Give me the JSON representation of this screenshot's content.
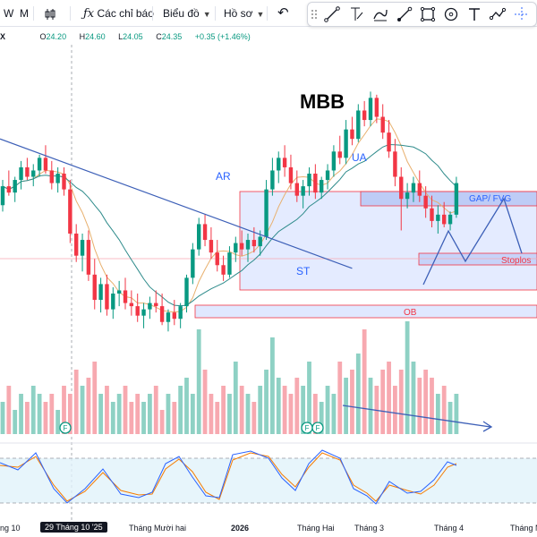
{
  "toolbar": {
    "interval_w": "W",
    "interval_m": "M",
    "indicators": "Các chỉ báo",
    "chart_type": "Biểu đồ",
    "profile": "Hồ sơ"
  },
  "drawing_tools": [
    "line-tool-icon",
    "ray-tool-icon",
    "pen-tool-icon",
    "brush-tool-icon",
    "rectangle-tool-icon",
    "circle-tool-icon",
    "text-tool-icon",
    "path-tool-icon",
    "crosshair-icon"
  ],
  "ohlc": {
    "close_x": "X",
    "o_label": "O",
    "o": "24.20",
    "h_label": "H",
    "h": "24.60",
    "l_label": "L",
    "l": "24.05",
    "c_label": "C",
    "c": "24.35",
    "change": "+0.35 (+1.46%)"
  },
  "annotations": {
    "title": "MBB",
    "ar": "AR",
    "ua": "UA",
    "st": "ST",
    "gap": "GAP/ FVG",
    "stoploss": "Stoplos",
    "ob": "OB"
  },
  "event_markers": [
    "F",
    "F",
    "F"
  ],
  "x_axis": {
    "labels": [
      "ng 10",
      "Tháng Mười hai",
      "2026",
      "Tháng Hai",
      "Tháng 3",
      "Tháng 4",
      "Tháng N"
    ],
    "crosshair_label": "29 Tháng 10 '25"
  },
  "colors": {
    "up": "#089981",
    "down": "#f23645",
    "vol_up": "#8ed1c4",
    "vol_down": "#f7a9b0",
    "zone_fill": "#dbe4ff",
    "zone_border": "#f23645",
    "gap_fill": "#b7c7f5",
    "trend": "#3c5fb7",
    "ma_fast": "#e8b06e",
    "ma_slow": "#2e8b8b",
    "stoch_k": "#2962ff",
    "stoch_d": "#f57c00"
  },
  "chart_data": {
    "type": "candlestick",
    "candles": [
      [
        23.7,
        24.5,
        23.5,
        24.3
      ],
      [
        24.3,
        24.8,
        24.0,
        24.1
      ],
      [
        24.1,
        24.6,
        23.8,
        24.5
      ],
      [
        24.5,
        25.1,
        24.2,
        24.9
      ],
      [
        24.9,
        25.2,
        24.5,
        24.6
      ],
      [
        24.6,
        25.0,
        24.3,
        24.8
      ],
      [
        24.8,
        25.3,
        24.6,
        25.2
      ],
      [
        25.2,
        25.6,
        24.7,
        24.8
      ],
      [
        24.8,
        25.1,
        24.2,
        24.4
      ],
      [
        24.4,
        24.9,
        24.1,
        24.7
      ],
      [
        24.7,
        24.9,
        24.0,
        24.2
      ],
      [
        24.2,
        24.5,
        22.5,
        22.8
      ],
      [
        22.8,
        23.1,
        21.9,
        22.1
      ],
      [
        22.1,
        22.8,
        21.6,
        22.6
      ],
      [
        22.6,
        22.9,
        21.3,
        21.5
      ],
      [
        21.5,
        22.0,
        20.4,
        20.7
      ],
      [
        20.7,
        21.4,
        20.3,
        21.2
      ],
      [
        21.2,
        21.5,
        20.2,
        20.4
      ],
      [
        20.4,
        21.1,
        20.1,
        20.9
      ],
      [
        20.9,
        21.3,
        20.5,
        21.0
      ],
      [
        21.0,
        21.4,
        20.4,
        20.6
      ],
      [
        20.6,
        21.0,
        20.2,
        20.5
      ],
      [
        20.5,
        20.9,
        20.0,
        20.2
      ],
      [
        20.2,
        20.6,
        19.8,
        20.4
      ],
      [
        20.4,
        20.8,
        20.1,
        20.6
      ],
      [
        20.6,
        21.0,
        20.3,
        20.5
      ],
      [
        20.5,
        20.9,
        19.9,
        20.0
      ],
      [
        20.0,
        20.4,
        19.7,
        20.3
      ],
      [
        20.3,
        20.7,
        19.9,
        20.1
      ],
      [
        20.1,
        20.6,
        19.8,
        20.5
      ],
      [
        20.5,
        21.5,
        20.3,
        21.4
      ],
      [
        21.4,
        22.5,
        21.2,
        22.3
      ],
      [
        22.3,
        23.3,
        22.1,
        23.1
      ],
      [
        23.1,
        23.4,
        22.4,
        22.6
      ],
      [
        22.6,
        23.0,
        22.0,
        22.2
      ],
      [
        22.2,
        22.6,
        21.6,
        21.8
      ],
      [
        21.8,
        22.1,
        21.3,
        21.5
      ],
      [
        21.5,
        22.4,
        21.4,
        22.2
      ],
      [
        22.2,
        22.7,
        21.9,
        22.5
      ],
      [
        22.5,
        22.9,
        22.1,
        22.3
      ],
      [
        22.3,
        22.8,
        21.9,
        22.6
      ],
      [
        22.6,
        23.0,
        22.2,
        22.4
      ],
      [
        22.4,
        22.9,
        22.1,
        22.7
      ],
      [
        22.7,
        24.5,
        22.6,
        24.2
      ],
      [
        24.2,
        25.2,
        24.0,
        24.8
      ],
      [
        24.8,
        25.4,
        24.4,
        25.2
      ],
      [
        25.2,
        25.6,
        24.6,
        24.9
      ],
      [
        24.9,
        25.3,
        24.2,
        24.4
      ],
      [
        24.4,
        24.8,
        23.8,
        24.0
      ],
      [
        24.0,
        24.5,
        23.6,
        24.3
      ],
      [
        24.3,
        24.9,
        24.0,
        24.7
      ],
      [
        24.7,
        25.0,
        23.9,
        24.1
      ],
      [
        24.1,
        24.6,
        23.9,
        24.5
      ],
      [
        24.5,
        25.0,
        24.2,
        24.8
      ],
      [
        24.8,
        25.6,
        24.6,
        25.4
      ],
      [
        25.4,
        25.9,
        25.0,
        25.2
      ],
      [
        25.2,
        26.4,
        25.0,
        26.1
      ],
      [
        26.1,
        26.5,
        25.6,
        25.8
      ],
      [
        25.8,
        26.9,
        25.7,
        26.7
      ],
      [
        26.7,
        27.0,
        26.2,
        26.4
      ],
      [
        26.4,
        27.3,
        26.2,
        27.1
      ],
      [
        27.1,
        27.2,
        26.3,
        26.5
      ],
      [
        26.5,
        26.9,
        25.8,
        26.0
      ],
      [
        26.0,
        26.4,
        25.2,
        25.4
      ],
      [
        25.4,
        25.8,
        24.3,
        24.6
      ],
      [
        24.6,
        24.9,
        22.9,
        23.9
      ],
      [
        23.9,
        24.4,
        23.6,
        24.1
      ],
      [
        24.1,
        24.6,
        23.8,
        24.4
      ],
      [
        24.4,
        24.8,
        23.8,
        24.0
      ],
      [
        24.0,
        24.3,
        23.3,
        23.6
      ],
      [
        23.6,
        24.0,
        23.0,
        23.2
      ],
      [
        23.2,
        23.7,
        22.8,
        23.4
      ],
      [
        23.4,
        23.8,
        23.0,
        23.1
      ],
      [
        23.1,
        23.5,
        22.9,
        23.4
      ],
      [
        23.4,
        24.6,
        23.3,
        24.4
      ]
    ],
    "volume": [
      4,
      6,
      3,
      5,
      4,
      6,
      5,
      4,
      5,
      3,
      6,
      5,
      8,
      6,
      7,
      9,
      5,
      6,
      4,
      5,
      6,
      4,
      5,
      4,
      5,
      6,
      3,
      5,
      4,
      6,
      7,
      5,
      13,
      8,
      5,
      4,
      6,
      5,
      9,
      6,
      5,
      4,
      6,
      8,
      12,
      7,
      6,
      5,
      7,
      6,
      9,
      5,
      4,
      6,
      5,
      9,
      7,
      8,
      10,
      13,
      7,
      6,
      8,
      9,
      6,
      8,
      14,
      9,
      7,
      8,
      7,
      5,
      6,
      4,
      5
    ],
    "trendline": [
      [
        0,
        25.8
      ],
      [
        57,
        21.7
      ]
    ],
    "volume_trendline": [
      [
        73,
        7.2
      ],
      [
        94,
        3.8
      ]
    ],
    "ylim": [
      19.0,
      28.5
    ]
  }
}
